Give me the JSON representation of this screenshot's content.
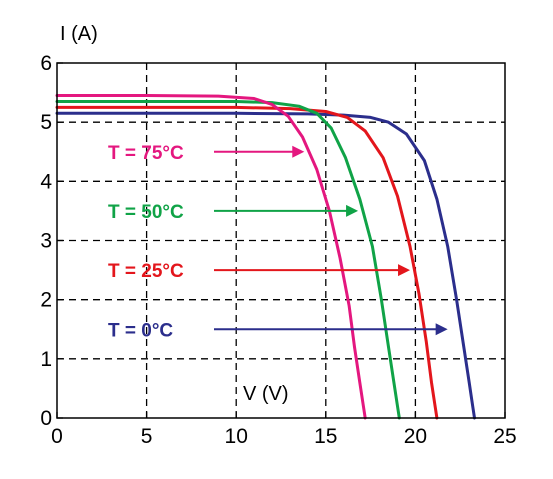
{
  "chart_data": {
    "type": "line",
    "xlabel": "V (V)",
    "ylabel": "I (A)",
    "xlim": [
      0,
      25
    ],
    "ylim": [
      0,
      6
    ],
    "xticks": [
      0,
      5,
      10,
      15,
      20,
      25
    ],
    "yticks": [
      0,
      1,
      2,
      3,
      4,
      5,
      6
    ],
    "grid": true,
    "series": [
      {
        "name": "T = 0°C",
        "color": "#2b2e8c",
        "x": [
          0,
          5,
          10,
          14,
          16,
          17.5,
          18.5,
          19.5,
          20.5,
          21.2,
          21.8,
          22.3,
          22.7,
          23.0,
          23.2,
          23.3
        ],
        "y": [
          5.15,
          5.15,
          5.15,
          5.14,
          5.12,
          5.08,
          5.0,
          4.8,
          4.35,
          3.7,
          2.9,
          2.0,
          1.2,
          0.6,
          0.2,
          0
        ]
      },
      {
        "name": "T = 25°C",
        "color": "#e3161c",
        "x": [
          0,
          5,
          10,
          13,
          15,
          16.2,
          17.2,
          18.2,
          19.0,
          19.7,
          20.2,
          20.6,
          20.9,
          21.1,
          21.2
        ],
        "y": [
          5.25,
          5.25,
          5.25,
          5.23,
          5.18,
          5.08,
          4.85,
          4.4,
          3.75,
          2.9,
          2.1,
          1.3,
          0.6,
          0.2,
          0
        ]
      },
      {
        "name": "T = 50°C",
        "color": "#10a347",
        "x": [
          0,
          5,
          10,
          12,
          13.5,
          14.5,
          15.3,
          16.1,
          16.9,
          17.6,
          18.1,
          18.5,
          18.8,
          19.0,
          19.1
        ],
        "y": [
          5.35,
          5.35,
          5.35,
          5.33,
          5.27,
          5.15,
          4.9,
          4.4,
          3.7,
          2.9,
          2.0,
          1.2,
          0.6,
          0.2,
          0
        ]
      },
      {
        "name": "T = 75°C",
        "color": "#e4177f",
        "x": [
          0,
          5,
          9,
          11,
          12,
          12.9,
          13.7,
          14.5,
          15.2,
          15.8,
          16.3,
          16.6,
          16.9,
          17.1,
          17.2
        ],
        "y": [
          5.45,
          5.45,
          5.44,
          5.4,
          5.3,
          5.1,
          4.75,
          4.2,
          3.5,
          2.7,
          1.9,
          1.2,
          0.6,
          0.2,
          0
        ]
      }
    ],
    "annotations": [
      {
        "text": "T = 75°C",
        "color": "#e4177f",
        "arrow_to": [
          13.8,
          4.5
        ]
      },
      {
        "text": "T = 50°C",
        "color": "#10a347",
        "arrow_to": [
          16.8,
          3.5
        ]
      },
      {
        "text": "T = 25°C",
        "color": "#e3161c",
        "arrow_to": [
          19.7,
          2.5
        ]
      },
      {
        "text": "T = 0°C",
        "color": "#2b2e8c",
        "arrow_to": [
          21.8,
          1.5
        ]
      }
    ]
  }
}
